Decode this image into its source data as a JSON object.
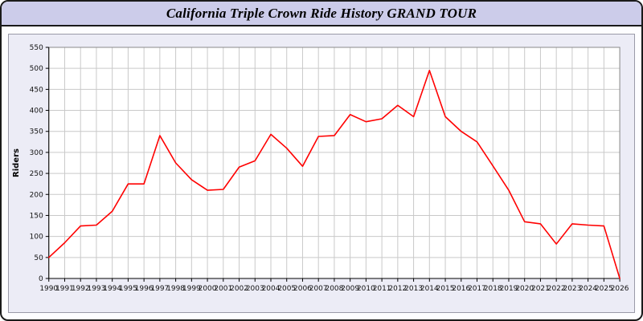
{
  "window": {
    "title": "California Triple Crown Ride History GRAND TOUR"
  },
  "colors": {
    "titlebar_bg": "#ccccea",
    "panel_bg": "#ececf6",
    "plot_bg": "#ffffff",
    "grid": "#c9c9c9",
    "axis": "#000000",
    "line": "#ff0000"
  },
  "chart_data": {
    "type": "line",
    "title": "California Triple Crown Ride History GRAND TOUR",
    "xlabel": "",
    "ylabel": "Riders",
    "ylim": [
      0,
      550
    ],
    "ytick_step": 50,
    "grid": true,
    "legend": false,
    "line_color": "#ff0000",
    "categories": [
      1990,
      1991,
      1992,
      1993,
      1994,
      1995,
      1996,
      1997,
      1998,
      1999,
      2000,
      2001,
      2002,
      2003,
      2004,
      2005,
      2006,
      2007,
      2008,
      2009,
      2010,
      2011,
      2012,
      2013,
      2014,
      2015,
      2016,
      2017,
      2018,
      2019,
      2020,
      2021,
      2022,
      2023,
      2024,
      2025,
      2026
    ],
    "values": [
      50,
      85,
      125,
      127,
      160,
      225,
      225,
      340,
      275,
      235,
      210,
      212,
      265,
      280,
      343,
      310,
      267,
      338,
      340,
      390,
      373,
      380,
      412,
      385,
      495,
      385,
      350,
      325,
      268,
      210,
      135,
      130,
      82,
      130,
      127,
      125,
      0
    ]
  }
}
